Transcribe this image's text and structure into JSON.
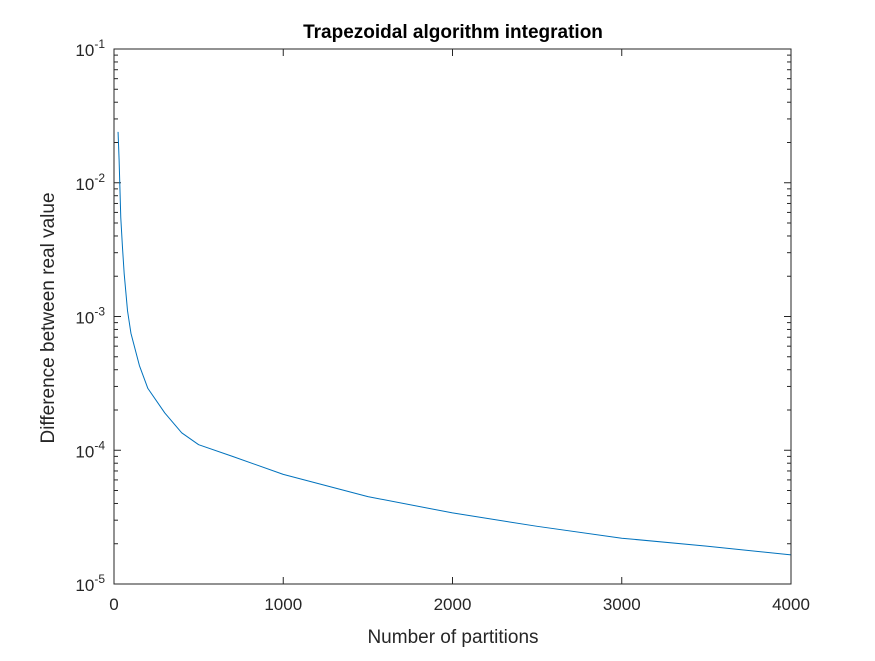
{
  "colors": {
    "series": "#0072BD",
    "axis": "#262626",
    "background": "#ffffff"
  },
  "chart_data": {
    "type": "line",
    "title": "Trapezoidal algorithm integration",
    "xlabel": "Number of partitions",
    "ylabel": "Difference between real value",
    "xlim": [
      0,
      4000
    ],
    "ylim": [
      1e-05,
      0.1
    ],
    "yscale": "log",
    "grid": false,
    "box": true,
    "xticks": [
      0,
      1000,
      2000,
      3000,
      4000
    ],
    "xtick_labels": [
      "0",
      "1000",
      "2000",
      "3000",
      "4000"
    ],
    "yticks": [
      1e-05,
      0.0001,
      0.001,
      0.01,
      0.1
    ],
    "ytick_labels": [
      {
        "base": "10",
        "exp": "-5"
      },
      {
        "base": "10",
        "exp": "-4"
      },
      {
        "base": "10",
        "exp": "-3"
      },
      {
        "base": "10",
        "exp": "-2"
      },
      {
        "base": "10",
        "exp": "-1"
      }
    ],
    "series": [
      {
        "color": "#0072BD",
        "x": [
          24,
          30,
          40,
          50,
          60,
          80,
          100,
          150,
          200,
          300,
          400,
          500,
          700,
          1000,
          1500,
          2000,
          2500,
          3000,
          3500,
          4000
        ],
        "y": [
          0.024,
          0.015,
          0.0055,
          0.0033,
          0.0021,
          0.0011,
          0.00075,
          0.00043,
          0.00029,
          0.00019,
          0.000135,
          0.00011,
          9e-05,
          6.6e-05,
          4.5e-05,
          3.4e-05,
          2.7e-05,
          2.2e-05,
          1.92e-05,
          1.65e-05
        ]
      }
    ]
  }
}
